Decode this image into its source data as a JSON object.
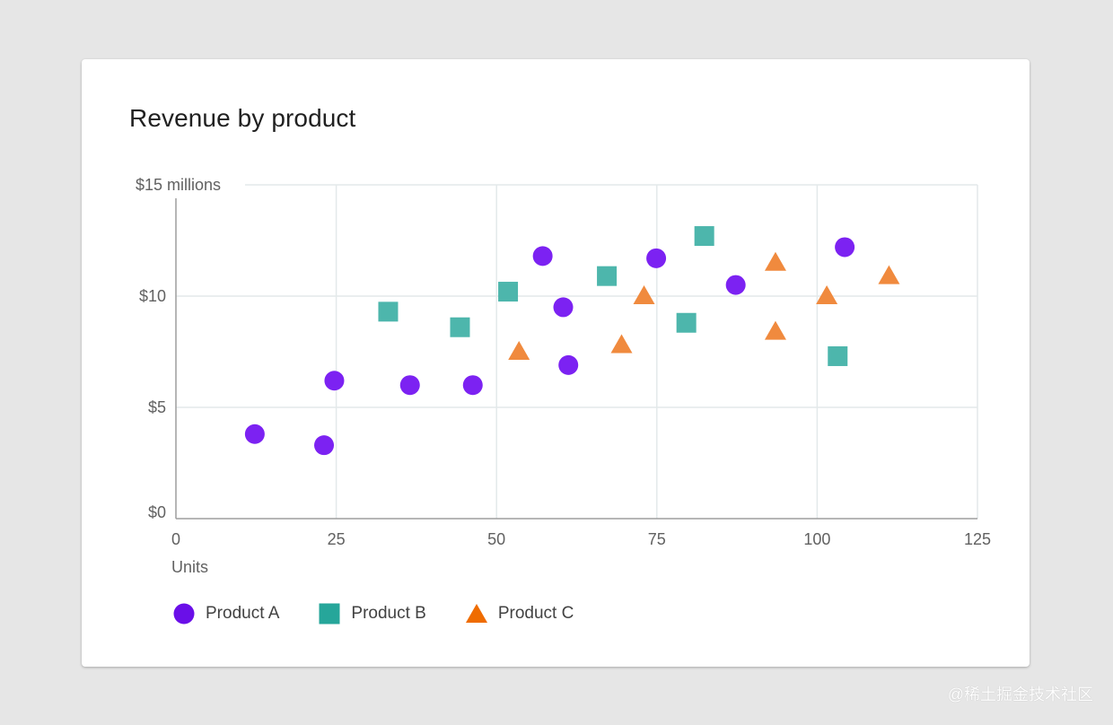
{
  "card": {
    "title": "Revenue by product"
  },
  "chart_data": {
    "type": "scatter",
    "title": "Revenue by product",
    "xlabel": "Units",
    "ylabel": "$15 millions",
    "xlim": [
      0,
      125
    ],
    "ylim": [
      0,
      15
    ],
    "x_ticks": [
      {
        "value": 0,
        "label": "0"
      },
      {
        "value": 25,
        "label": "25"
      },
      {
        "value": 50,
        "label": "50"
      },
      {
        "value": 75,
        "label": "75"
      },
      {
        "value": 100,
        "label": "100"
      },
      {
        "value": 125,
        "label": "125"
      }
    ],
    "y_ticks": [
      {
        "value": 0,
        "label": "$0"
      },
      {
        "value": 5,
        "label": "$5"
      },
      {
        "value": 10,
        "label": "$10"
      },
      {
        "value": 15,
        "label": "$15 millions"
      }
    ],
    "grid": true,
    "legend_position": "bottom-left",
    "series": [
      {
        "name": "Product A",
        "marker": "circle",
        "color": "#7c22f2",
        "legend_color": "#6a0fe8",
        "points": [
          {
            "x": 12.3,
            "y": 3.8
          },
          {
            "x": 23.1,
            "y": 3.3
          },
          {
            "x": 24.7,
            "y": 6.2
          },
          {
            "x": 36.5,
            "y": 6.0
          },
          {
            "x": 46.3,
            "y": 6.0
          },
          {
            "x": 57.2,
            "y": 11.8
          },
          {
            "x": 60.4,
            "y": 9.5
          },
          {
            "x": 61.2,
            "y": 6.9
          },
          {
            "x": 74.9,
            "y": 11.7
          },
          {
            "x": 87.3,
            "y": 10.5
          },
          {
            "x": 104.3,
            "y": 12.2
          }
        ]
      },
      {
        "name": "Product B",
        "marker": "square",
        "color": "#4db6ac",
        "legend_color": "#26a69a",
        "points": [
          {
            "x": 33.1,
            "y": 9.3
          },
          {
            "x": 44.3,
            "y": 8.6
          },
          {
            "x": 51.8,
            "y": 10.2
          },
          {
            "x": 67.2,
            "y": 10.9
          },
          {
            "x": 79.6,
            "y": 8.8
          },
          {
            "x": 82.4,
            "y": 12.7
          },
          {
            "x": 103.2,
            "y": 7.3
          }
        ]
      },
      {
        "name": "Product C",
        "marker": "triangle",
        "color": "#f08a3e",
        "legend_color": "#ef6c00",
        "points": [
          {
            "x": 53.5,
            "y": 7.5
          },
          {
            "x": 69.5,
            "y": 7.8
          },
          {
            "x": 73.0,
            "y": 10.0
          },
          {
            "x": 93.5,
            "y": 11.5
          },
          {
            "x": 93.5,
            "y": 8.4
          },
          {
            "x": 101.5,
            "y": 10.0
          },
          {
            "x": 111.2,
            "y": 10.9
          }
        ]
      }
    ]
  },
  "watermark": "@稀土掘金技术社区"
}
